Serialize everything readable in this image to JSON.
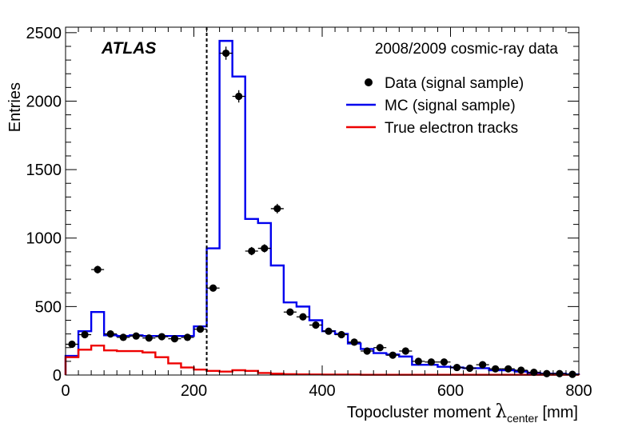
{
  "chart_data": {
    "type": "histogram",
    "title": "",
    "atlas_label": "ATLAS",
    "dataset_label": "2008/2009 cosmic-ray data",
    "xlabel_prefix": "Topocluster moment ",
    "xlabel_symbol": "λ",
    "xlabel_sub": "center",
    "xlabel_suffix": " [mm]",
    "ylabel": "Entries",
    "xlim": [
      0,
      800
    ],
    "ylim": [
      0,
      2540
    ],
    "xticks": [
      0,
      200,
      400,
      600,
      800
    ],
    "xtick_labels": [
      "0",
      "200",
      "400",
      "600",
      "800"
    ],
    "yticks": [
      0,
      500,
      1000,
      1500,
      2000,
      2500
    ],
    "ytick_labels": [
      "0",
      "500",
      "1000",
      "1500",
      "2000",
      "2500"
    ],
    "cut_line_x": 220,
    "bin_edges": [
      0,
      20,
      40,
      60,
      80,
      100,
      120,
      140,
      160,
      180,
      200,
      220,
      240,
      260,
      280,
      300,
      320,
      340,
      360,
      380,
      400,
      420,
      440,
      460,
      480,
      500,
      520,
      540,
      560,
      580,
      600,
      620,
      640,
      660,
      680,
      700,
      720,
      740,
      760,
      780,
      800
    ],
    "legend": [
      {
        "label": "Data (signal sample)",
        "kind": "marker",
        "color": "#000000"
      },
      {
        "label": "MC (signal sample)",
        "kind": "line",
        "color": "#0000ee"
      },
      {
        "label": "True electron tracks",
        "kind": "line",
        "color": "#ee0000"
      }
    ],
    "series": [
      {
        "name": "Data (signal sample)",
        "style": "points",
        "color": "#000000",
        "x": [
          10,
          30,
          50,
          70,
          90,
          110,
          130,
          150,
          170,
          190,
          210,
          230,
          250,
          270,
          290,
          310,
          330,
          350,
          370,
          390,
          410,
          430,
          450,
          470,
          490,
          510,
          530,
          550,
          570,
          590,
          610,
          630,
          650,
          670,
          690,
          710,
          730,
          750,
          770,
          790
        ],
        "values": [
          225,
          295,
          770,
          300,
          275,
          285,
          270,
          280,
          265,
          275,
          335,
          635,
          2350,
          2035,
          905,
          925,
          1215,
          460,
          425,
          365,
          320,
          295,
          240,
          175,
          200,
          145,
          175,
          100,
          95,
          95,
          55,
          50,
          75,
          45,
          45,
          35,
          20,
          10,
          10,
          5
        ],
        "errors": [
          15,
          17,
          28,
          17,
          17,
          17,
          16,
          17,
          16,
          17,
          18,
          25,
          48,
          45,
          30,
          30,
          35,
          21,
          21,
          19,
          18,
          17,
          15,
          13,
          14,
          12,
          13,
          10,
          10,
          10,
          7,
          7,
          9,
          7,
          7,
          6,
          4,
          3,
          3,
          2
        ]
      },
      {
        "name": "MC (signal sample)",
        "style": "step",
        "color": "#0000ee",
        "values": [
          140,
          320,
          460,
          290,
          285,
          290,
          285,
          285,
          285,
          285,
          355,
          925,
          2440,
          2180,
          1140,
          1110,
          800,
          530,
          500,
          400,
          320,
          300,
          230,
          190,
          160,
          150,
          135,
          75,
          75,
          60,
          55,
          50,
          50,
          35,
          35,
          25,
          15,
          10,
          10,
          5
        ]
      },
      {
        "name": "True electron tracks",
        "style": "step",
        "color": "#ee0000",
        "values": [
          130,
          185,
          215,
          180,
          175,
          175,
          165,
          130,
          85,
          55,
          40,
          30,
          25,
          35,
          30,
          15,
          10,
          6,
          5,
          4,
          3,
          3,
          3,
          2,
          2,
          2,
          2,
          2,
          2,
          2,
          2,
          2,
          2,
          2,
          2,
          2,
          2,
          2,
          2,
          2
        ]
      }
    ]
  }
}
